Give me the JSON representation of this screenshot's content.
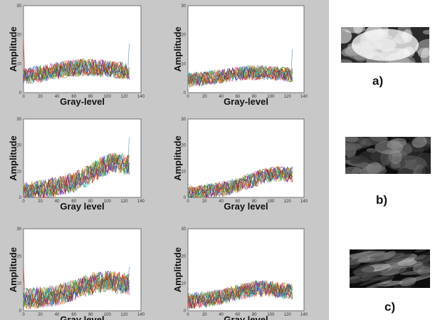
{
  "chart_data": [
    {
      "type": "line",
      "panel": "row1-left",
      "xlabel": "Gray-level",
      "ylabel": "Amplitude",
      "xlim": [
        0,
        140
      ],
      "ylim": [
        0,
        30
      ],
      "xticks": [
        "0",
        "20",
        "40",
        "60",
        "80",
        "100",
        "120",
        "140"
      ],
      "yticks": [
        "0",
        "10",
        "20",
        "30"
      ],
      "profile": {
        "base": 4.5,
        "slope": 0.01,
        "hump_center": 70,
        "hump_height": 2.5,
        "hump_width": 50,
        "noise": 3,
        "spike_left": 18,
        "spike_right": 17,
        "series_count": 18
      }
    },
    {
      "type": "line",
      "panel": "row1-right",
      "xlabel": "Gray-level",
      "ylabel": "Amplitude",
      "xlim": [
        0,
        140
      ],
      "ylim": [
        0,
        30
      ],
      "xticks": [
        "0",
        "20",
        "40",
        "60",
        "80",
        "100",
        "120",
        "140"
      ],
      "yticks": [
        "0",
        "10",
        "20",
        "30"
      ],
      "profile": {
        "base": 3.5,
        "slope": 0.008,
        "hump_center": 80,
        "hump_height": 2,
        "hump_width": 50,
        "noise": 2.5,
        "spike_left": 6,
        "spike_right": 15,
        "series_count": 18
      }
    },
    {
      "type": "line",
      "panel": "row2-left",
      "xlabel": "Gray level",
      "ylabel": "Amplitude",
      "xlim": [
        0,
        140
      ],
      "ylim": [
        0,
        30
      ],
      "xticks": [
        "0",
        "20",
        "40",
        "60",
        "80",
        "100",
        "120",
        "140"
      ],
      "yticks": [
        "0",
        "10",
        "20",
        "30"
      ],
      "profile": {
        "base": 0.5,
        "slope": 0.06,
        "hump_center": 105,
        "hump_height": 5,
        "hump_width": 30,
        "noise": 4,
        "spike_left": 2,
        "spike_right": 23,
        "series_count": 18
      }
    },
    {
      "type": "line",
      "panel": "row2-right",
      "xlabel": "Gray level",
      "ylabel": "Amplitude",
      "xlim": [
        0,
        140
      ],
      "ylim": [
        0,
        30
      ],
      "xticks": [
        "0",
        "20",
        "40",
        "60",
        "80",
        "100",
        "120",
        "140"
      ],
      "yticks": [
        "0",
        "10",
        "20",
        "30"
      ],
      "profile": {
        "base": 0.3,
        "slope": 0.045,
        "hump_center": 100,
        "hump_height": 3,
        "hump_width": 35,
        "noise": 3,
        "spike_left": 1,
        "spike_right": 12,
        "series_count": 18
      }
    },
    {
      "type": "line",
      "panel": "row3-left",
      "xlabel": "Gray level",
      "ylabel": "Amplitude",
      "xlim": [
        0,
        140
      ],
      "ylim": [
        0,
        30
      ],
      "xticks": [
        "0",
        "20",
        "40",
        "60",
        "80",
        "100",
        "120",
        "140"
      ],
      "yticks": [
        "0",
        "10",
        "20",
        "30"
      ],
      "profile": {
        "base": 3,
        "slope": 0.025,
        "hump_center": 95,
        "hump_height": 4,
        "hump_width": 40,
        "noise": 4,
        "spike_left": 16,
        "spike_right": 16,
        "series_count": 18
      }
    },
    {
      "type": "line",
      "panel": "row3-right",
      "xlabel": "Gray level",
      "ylabel": "Amplitude",
      "xlim": [
        0,
        140
      ],
      "ylim": [
        0,
        30
      ],
      "xticks": [
        "0",
        "20",
        "40",
        "60",
        "80",
        "100",
        "120",
        "140"
      ],
      "yticks": [
        "0",
        "10",
        "20",
        "30"
      ],
      "profile": {
        "base": 2.5,
        "slope": 0.02,
        "hump_center": 85,
        "hump_height": 3,
        "hump_width": 40,
        "noise": 3,
        "spike_left": 5,
        "spike_right": 9,
        "series_count": 18
      }
    }
  ],
  "samples": [
    {
      "label": "a)",
      "texture": "bright"
    },
    {
      "label": "b)",
      "texture": "dark-mottled"
    },
    {
      "label": "c)",
      "texture": "dark-streaked"
    }
  ],
  "series_colors": [
    "#e41a1c",
    "#377eb8",
    "#4daf4a",
    "#984ea3",
    "#ff7f00",
    "#a65628",
    "#f781bf",
    "#1b9e77",
    "#d95f02",
    "#7570b3",
    "#e7298a",
    "#66a61e",
    "#e6ab02",
    "#0000ff",
    "#00aa00",
    "#cc0000",
    "#00bcd4",
    "#8b4513"
  ]
}
